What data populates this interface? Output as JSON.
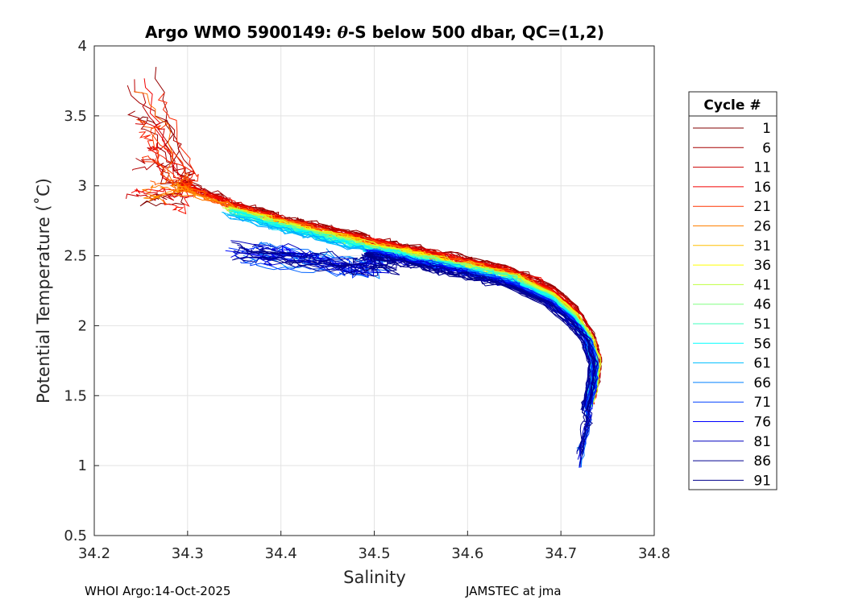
{
  "chart_data": {
    "type": "line",
    "title_prefix": "Argo WMO 5900149: ",
    "title_theta": "θ",
    "title_suffix": "-S below 500 dbar,  QC=(1,2)",
    "xlabel": "Salinity",
    "ylabel": "Potential Temperature (˚C)",
    "xlim": [
      34.2,
      34.8
    ],
    "ylim": [
      0.5,
      4
    ],
    "xticks": [
      34.2,
      34.3,
      34.4,
      34.5,
      34.6,
      34.7,
      34.8
    ],
    "xtick_labels": [
      "34.2",
      "34.3",
      "34.4",
      "34.5",
      "34.6",
      "34.7",
      "34.8"
    ],
    "yticks": [
      0.5,
      1,
      1.5,
      2,
      2.5,
      3,
      3.5,
      4
    ],
    "ytick_labels": [
      "0.5",
      "1",
      "1.5",
      "2",
      "2.5",
      "3",
      "3.5",
      "4"
    ],
    "grid": true,
    "legend_title": "Cycle #",
    "legend_position": "right",
    "legend": [
      {
        "label": "1",
        "color": "#800000"
      },
      {
        "label": "6",
        "color": "#a50000"
      },
      {
        "label": "11",
        "color": "#cc0000"
      },
      {
        "label": "16",
        "color": "#f20000"
      },
      {
        "label": "21",
        "color": "#ff3300"
      },
      {
        "label": "26",
        "color": "#ff8000"
      },
      {
        "label": "31",
        "color": "#ffbf00"
      },
      {
        "label": "36",
        "color": "#ffff00"
      },
      {
        "label": "41",
        "color": "#bfff40"
      },
      {
        "label": "46",
        "color": "#80ff80"
      },
      {
        "label": "51",
        "color": "#40ffbf"
      },
      {
        "label": "56",
        "color": "#00ffff"
      },
      {
        "label": "61",
        "color": "#00bfff"
      },
      {
        "label": "66",
        "color": "#0080ff"
      },
      {
        "label": "71",
        "color": "#0040ff"
      },
      {
        "label": "76",
        "color": "#0000ff"
      },
      {
        "label": "81",
        "color": "#0000bf"
      },
      {
        "label": "86",
        "color": "#000090"
      },
      {
        "label": "91",
        "color": "#00008b"
      }
    ],
    "series_shape": {
      "description": "Approximate theta-S profile shape shared by cycles (S in psu, theta in degC)",
      "base": [
        [
          34.3,
          2.95
        ],
        [
          34.35,
          2.82
        ],
        [
          34.4,
          2.72
        ],
        [
          34.45,
          2.64
        ],
        [
          34.5,
          2.56
        ],
        [
          34.55,
          2.49
        ],
        [
          34.6,
          2.42
        ],
        [
          34.65,
          2.34
        ],
        [
          34.69,
          2.22
        ],
        [
          34.715,
          2.08
        ],
        [
          34.732,
          1.92
        ],
        [
          34.74,
          1.75
        ],
        [
          34.738,
          1.58
        ],
        [
          34.732,
          1.42
        ]
      ],
      "early_extension": [
        [
          34.255,
          3.85
        ],
        [
          34.27,
          3.45
        ],
        [
          34.29,
          3.1
        ]
      ],
      "late_start": [
        [
          34.36,
          2.52
        ],
        [
          34.4,
          2.5
        ],
        [
          34.45,
          2.46
        ],
        [
          34.5,
          2.42
        ]
      ],
      "deepest_points": [
        [
          34.72,
          0.98
        ],
        [
          34.725,
          1.15
        ],
        [
          34.73,
          1.3
        ]
      ]
    }
  },
  "footer": {
    "left": "WHOI Argo:14-Oct-2025",
    "right": "JAMSTEC at jma"
  }
}
